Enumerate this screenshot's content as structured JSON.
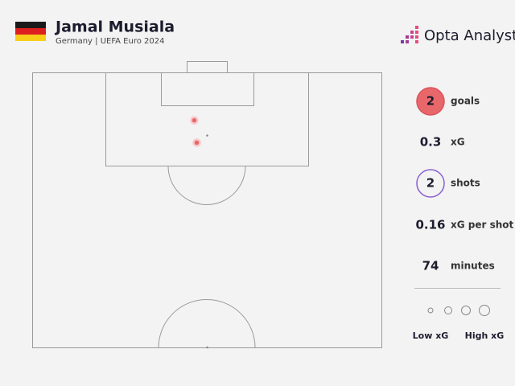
{
  "header": {
    "name": "Jamal Musiala",
    "subtitle": "Germany | UEFA Euro 2024",
    "brand": "Opta Analyst"
  },
  "stats": [
    {
      "value": 2,
      "label": "goals"
    },
    {
      "value": 0.3,
      "label": "xG"
    },
    {
      "value": 2,
      "label": "shots"
    },
    {
      "value": 0.16,
      "label": "xG per shot"
    },
    {
      "value": 74,
      "label": "minutes"
    }
  ],
  "legend": {
    "low": "Low xG",
    "high": "High xG"
  },
  "chart_data": {
    "type": "scatter",
    "x": [
      46.3,
      47.0
    ],
    "values": [
      17.3,
      25.4
    ],
    "color": "#e8676b",
    "xlim": [
      0,
      100
    ],
    "ylim": [
      0,
      100
    ]
  }
}
